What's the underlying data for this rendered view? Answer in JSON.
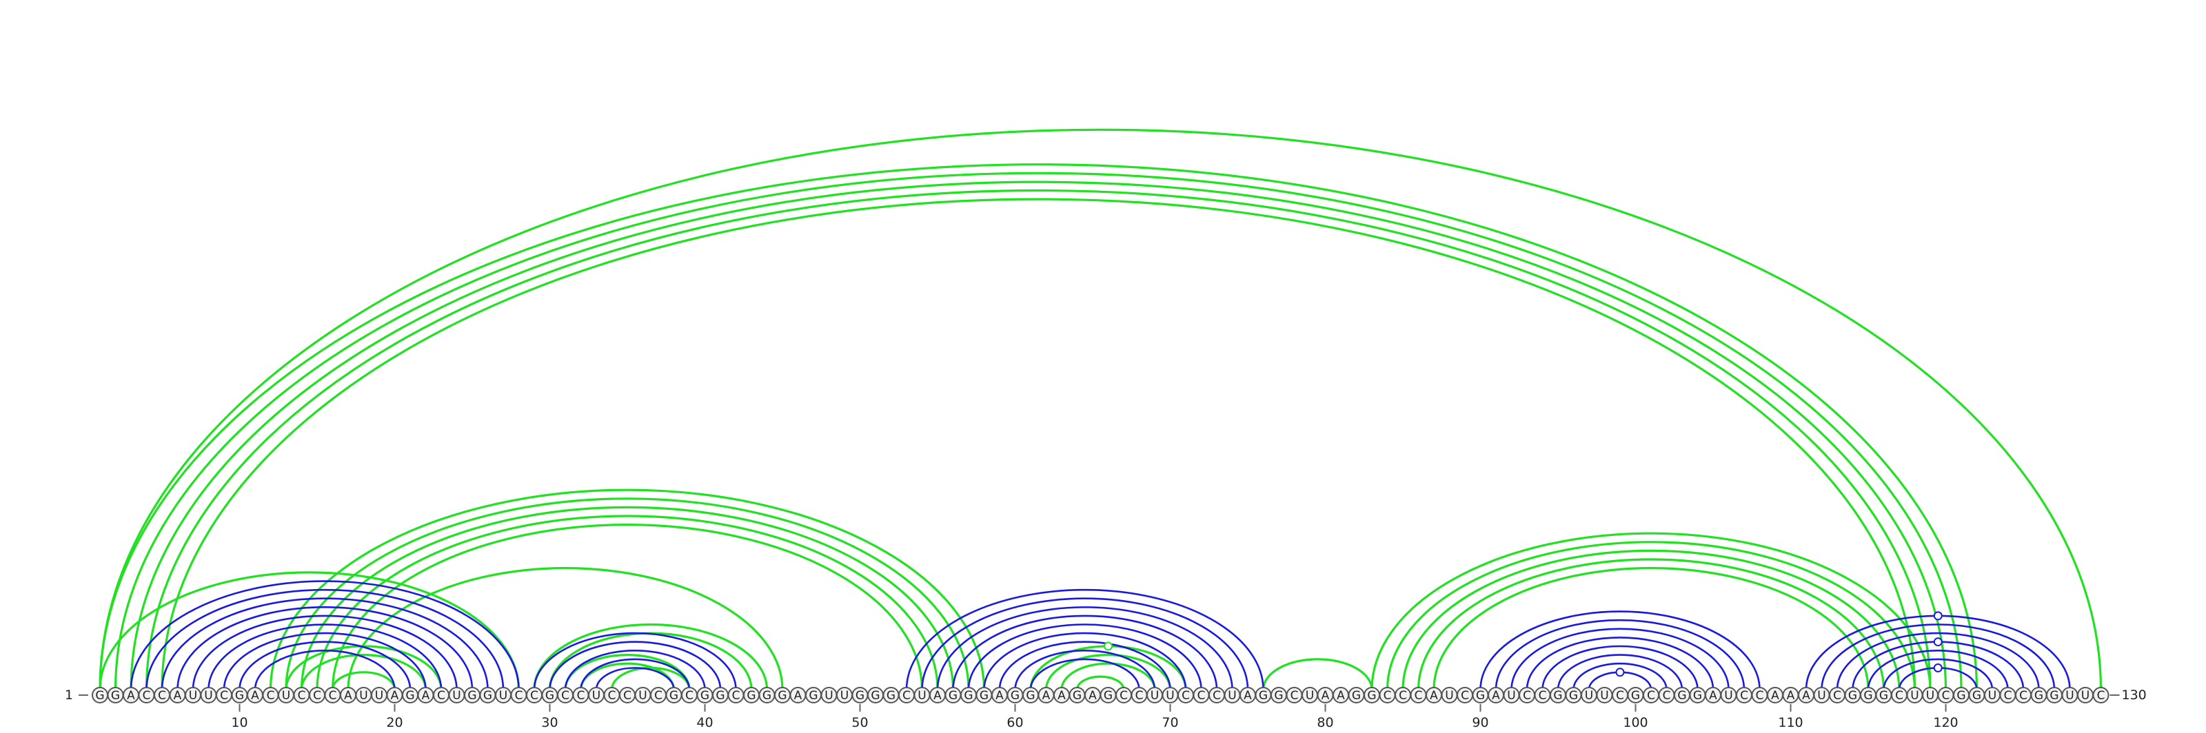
{
  "diagram": {
    "sequence": "GGACCAUUCGACUCCCAUUAGACUGGUCCGCCUCCUCGCGGCGGGAGUUGGGCUAGGGAGGAAGAGCCUUCCCUAGGCUAAGGCCCAUCGAUCCGGUUCGCCGGAUCCAAAUCGGGCUUCGGUCCGGUUC",
    "start_label": "1",
    "end_label": "130",
    "tick_labels": [
      "10",
      "20",
      "30",
      "40",
      "50",
      "60",
      "70",
      "80",
      "90",
      "100",
      "110",
      "120"
    ],
    "colors": {
      "blue": "#1a1adf",
      "green": "#22e022"
    },
    "blue_pairs": [
      [
        3,
        28
      ],
      [
        4,
        27
      ],
      [
        5,
        26
      ],
      [
        6,
        25
      ],
      [
        7,
        24
      ],
      [
        8,
        23
      ],
      [
        9,
        22
      ],
      [
        10,
        21
      ],
      [
        11,
        20
      ],
      [
        29,
        42
      ],
      [
        30,
        41
      ],
      [
        31,
        40
      ],
      [
        32,
        39
      ],
      [
        33,
        38
      ],
      [
        53,
        76
      ],
      [
        54,
        75
      ],
      [
        55,
        74
      ],
      [
        56,
        73
      ],
      [
        57,
        72
      ],
      [
        58,
        71
      ],
      [
        59,
        70
      ],
      [
        60,
        69
      ],
      [
        61,
        68
      ],
      [
        90,
        108
      ],
      [
        91,
        107
      ],
      [
        92,
        106
      ],
      [
        93,
        105
      ],
      [
        94,
        104
      ],
      [
        95,
        103
      ],
      [
        96,
        102
      ],
      [
        97,
        101
      ],
      [
        111,
        128
      ],
      [
        112,
        127
      ],
      [
        113,
        126
      ],
      [
        114,
        125
      ],
      [
        115,
        124
      ],
      [
        116,
        123
      ],
      [
        117,
        122
      ]
    ],
    "green_pairs": [
      [
        1,
        130
      ],
      [
        1,
        122
      ],
      [
        2,
        121
      ],
      [
        3,
        120
      ],
      [
        4,
        119
      ],
      [
        5,
        118
      ],
      [
        1,
        28
      ],
      [
        12,
        58
      ],
      [
        13,
        57
      ],
      [
        14,
        56
      ],
      [
        15,
        55
      ],
      [
        16,
        54
      ],
      [
        17,
        45
      ],
      [
        13,
        23
      ],
      [
        14,
        22
      ],
      [
        16,
        20
      ],
      [
        29,
        44
      ],
      [
        30,
        43
      ],
      [
        31,
        39
      ],
      [
        32,
        38
      ],
      [
        34,
        39
      ],
      [
        61,
        71
      ],
      [
        62,
        70
      ],
      [
        63,
        69
      ],
      [
        64,
        67
      ],
      [
        76,
        83
      ],
      [
        83,
        119
      ],
      [
        84,
        118
      ],
      [
        85,
        117
      ],
      [
        86,
        116
      ],
      [
        87,
        115
      ]
    ],
    "pseudoknot_markers": [
      {
        "pair_index": 0,
        "color": "blue"
      },
      {
        "pair_index": 1,
        "color": "blue"
      },
      {
        "pair_index": 2,
        "color": "blue"
      },
      {
        "pair_index": 3,
        "color": "green"
      },
      {
        "pair_index": 4,
        "color": "blue"
      }
    ]
  }
}
